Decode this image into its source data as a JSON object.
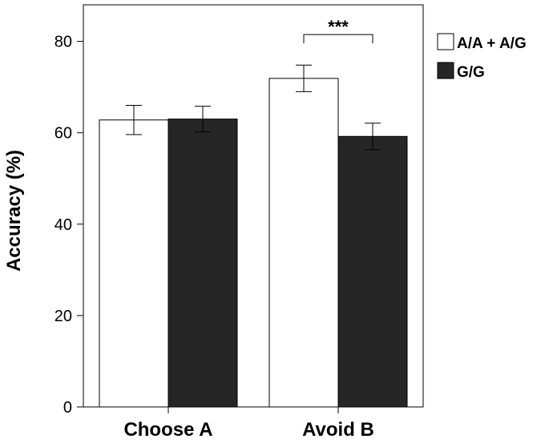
{
  "chart_data": {
    "type": "bar",
    "title": "",
    "xlabel": "",
    "ylabel": "Accuracy (%)",
    "ylim": [
      0,
      88
    ],
    "yticks": [
      0,
      20,
      40,
      60,
      80
    ],
    "categories": [
      "Choose A",
      "Avoid B"
    ],
    "series": [
      {
        "name": "A/A + A/G",
        "color": "#ffffff",
        "values": [
          62.8,
          71.9
        ],
        "errors": [
          3.2,
          2.9
        ]
      },
      {
        "name": "G/G",
        "color": "#262626",
        "values": [
          63.0,
          59.2
        ],
        "errors": [
          2.8,
          2.9
        ]
      }
    ],
    "annotations": [
      {
        "text": "***",
        "category": "Avoid B",
        "bracket": true
      }
    ],
    "legend_position": "right",
    "grid": false
  }
}
